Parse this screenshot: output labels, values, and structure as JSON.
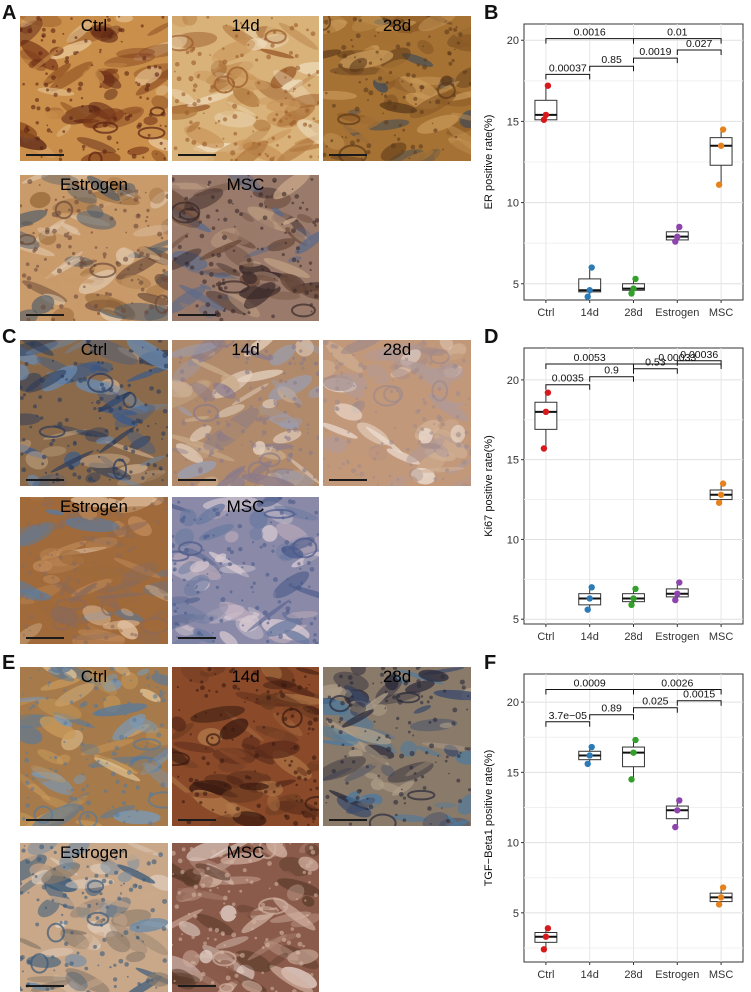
{
  "panel_letters": [
    "A",
    "B",
    "C",
    "D",
    "E",
    "F"
  ],
  "micrographs": [
    {
      "label": "Ctrl",
      "palette": [
        "#8a4a1e",
        "#c98f4b",
        "#5a2212",
        "#e8c89a",
        "#7d3a1a"
      ]
    },
    {
      "label": "14d",
      "palette": [
        "#b27a40",
        "#d9b27a",
        "#9a5a28",
        "#eedcbc",
        "#c9965a"
      ]
    },
    {
      "label": "28d",
      "palette": [
        "#8a5a26",
        "#a67234",
        "#5d3a1a",
        "#c99a5a",
        "#3a4a5a"
      ]
    },
    {
      "label": "Estrogen",
      "palette": [
        "#9a6a3a",
        "#c99a6a",
        "#6a4a3a",
        "#e2cbb0",
        "#4a5a6a"
      ]
    },
    {
      "label": "MSC",
      "palette": [
        "#6a4a3a",
        "#9a7a6a",
        "#3a2a2a",
        "#c9a88a",
        "#5a6a8a"
      ]
    },
    {
      "label": "Ctrl",
      "palette": [
        "#3a5a8a",
        "#8a6a4a",
        "#2a3a5a",
        "#c9aa8a",
        "#6a8ab0"
      ]
    },
    {
      "label": "14d",
      "palette": [
        "#c9aa8a",
        "#b08a6a",
        "#8a7a8a",
        "#e6d3c2",
        "#9aa0b8"
      ]
    },
    {
      "label": "28d",
      "palette": [
        "#d2b196",
        "#c2987a",
        "#a08a8a",
        "#ecdcd0",
        "#b09a9a"
      ]
    },
    {
      "label": "Estrogen",
      "palette": [
        "#c08a5a",
        "#a06a3a",
        "#8a6a5a",
        "#e2c2a2",
        "#5a7aa0"
      ]
    },
    {
      "label": "MSC",
      "palette": [
        "#b8a8b8",
        "#8a8aa8",
        "#4a5a8a",
        "#d8cad2",
        "#6a7aa0"
      ]
    },
    {
      "label": "Ctrl",
      "palette": [
        "#c99a5a",
        "#a67a4a",
        "#5a7a9a",
        "#e6c89a",
        "#7a9ab8"
      ]
    },
    {
      "label": "14d",
      "palette": [
        "#5a2a1a",
        "#8a4a2a",
        "#3a1a10",
        "#b27a4a",
        "#6a3a20"
      ]
    },
    {
      "label": "28d",
      "palette": [
        "#3a4a6a",
        "#8a7a6a",
        "#2a2a3a",
        "#b0a08a",
        "#4a7aa0"
      ]
    },
    {
      "label": "Estrogen",
      "palette": [
        "#8a7a6a",
        "#c9a88a",
        "#3a5a7a",
        "#e2d2c2",
        "#6a8aa8"
      ]
    },
    {
      "label": "MSC",
      "palette": [
        "#b28a7a",
        "#8a5a4a",
        "#d2b2a2",
        "#5a3a2a",
        "#e8d8d0"
      ]
    }
  ],
  "chart_data": [
    {
      "type": "box",
      "ylabel": "ER positive rate(%)",
      "ylim": [
        4,
        21
      ],
      "yticks": [
        5,
        10,
        15,
        20
      ],
      "categories": [
        "Ctrl",
        "14d",
        "28d",
        "Estrogen",
        "MSC"
      ],
      "colors": [
        "#d7191c",
        "#2c7bb6",
        "#33a02c",
        "#8e44ad",
        "#e6821e"
      ],
      "boxes": [
        {
          "min": 15.0,
          "q1": 15.1,
          "median": 15.4,
          "q3": 16.3,
          "max": 17.2
        },
        {
          "min": 4.2,
          "q1": 4.5,
          "median": 4.6,
          "q3": 5.3,
          "max": 6.0
        },
        {
          "min": 4.4,
          "q1": 4.6,
          "median": 4.7,
          "q3": 5.0,
          "max": 5.3
        },
        {
          "min": 7.6,
          "q1": 7.7,
          "median": 7.9,
          "q3": 8.2,
          "max": 8.5
        },
        {
          "min": 11.1,
          "q1": 12.3,
          "median": 13.5,
          "q3": 14.0,
          "max": 14.5
        }
      ],
      "points": [
        [
          15.1,
          15.4,
          17.2
        ],
        [
          4.2,
          4.6,
          6.0
        ],
        [
          4.4,
          4.7,
          5.3
        ],
        [
          7.6,
          7.9,
          8.5
        ],
        [
          11.1,
          13.5,
          14.5
        ]
      ],
      "comparisons": [
        {
          "from": 0,
          "to": 2,
          "label": "0.0016",
          "y": 20.1
        },
        {
          "from": 2,
          "to": 4,
          "label": "0.01",
          "y": 20.1
        },
        {
          "from": 0,
          "to": 1,
          "label": "0.00037",
          "y": 17.9
        },
        {
          "from": 1,
          "to": 2,
          "label": "0.85",
          "y": 18.4
        },
        {
          "from": 2,
          "to": 3,
          "label": "0.0019",
          "y": 18.9
        },
        {
          "from": 3,
          "to": 4,
          "label": "0.027",
          "y": 19.4
        }
      ]
    },
    {
      "type": "box",
      "ylabel": "Ki67 positive rate(%)",
      "ylim": [
        4.7,
        22
      ],
      "yticks": [
        5,
        10,
        15,
        20
      ],
      "categories": [
        "Ctrl",
        "14d",
        "28d",
        "Estrogen",
        "MSC"
      ],
      "colors": [
        "#d7191c",
        "#2c7bb6",
        "#33a02c",
        "#8e44ad",
        "#e6821e"
      ],
      "boxes": [
        {
          "min": 15.7,
          "q1": 16.9,
          "median": 18.0,
          "q3": 18.6,
          "max": 19.2
        },
        {
          "min": 5.6,
          "q1": 5.9,
          "median": 6.3,
          "q3": 6.6,
          "max": 7.0
        },
        {
          "min": 5.9,
          "q1": 6.1,
          "median": 6.3,
          "q3": 6.6,
          "max": 6.9
        },
        {
          "min": 6.2,
          "q1": 6.4,
          "median": 6.6,
          "q3": 6.9,
          "max": 7.3
        },
        {
          "min": 12.3,
          "q1": 12.5,
          "median": 12.8,
          "q3": 13.1,
          "max": 13.5
        }
      ],
      "points": [
        [
          15.7,
          18.0,
          19.2
        ],
        [
          5.6,
          6.3,
          7.0
        ],
        [
          5.9,
          6.3,
          6.9
        ],
        [
          6.2,
          6.6,
          7.3
        ],
        [
          12.3,
          12.8,
          13.5
        ]
      ],
      "comparisons": [
        {
          "from": 0,
          "to": 2,
          "label": "0.0053",
          "y": 21.0
        },
        {
          "from": 2,
          "to": 4,
          "label": "0.00033",
          "y": 21.0
        },
        {
          "from": 0,
          "to": 1,
          "label": "0.0035",
          "y": 19.7
        },
        {
          "from": 1,
          "to": 2,
          "label": "0.9",
          "y": 20.2
        },
        {
          "from": 2,
          "to": 3,
          "label": "0.53",
          "y": 20.7
        },
        {
          "from": 3,
          "to": 4,
          "label": "0.00036",
          "y": 21.2
        }
      ]
    },
    {
      "type": "box",
      "ylabel": "TGF−Beta1 positive rate(%)",
      "ylim": [
        1.5,
        22
      ],
      "yticks": [
        5,
        10,
        15,
        20
      ],
      "categories": [
        "Ctrl",
        "14d",
        "28d",
        "Estrogen",
        "MSC"
      ],
      "colors": [
        "#d7191c",
        "#2c7bb6",
        "#33a02c",
        "#8e44ad",
        "#e6821e"
      ],
      "boxes": [
        {
          "min": 2.4,
          "q1": 2.9,
          "median": 3.3,
          "q3": 3.6,
          "max": 3.9
        },
        {
          "min": 15.6,
          "q1": 15.9,
          "median": 16.2,
          "q3": 16.5,
          "max": 16.8
        },
        {
          "min": 14.5,
          "q1": 15.4,
          "median": 16.4,
          "q3": 16.8,
          "max": 17.3
        },
        {
          "min": 11.1,
          "q1": 11.7,
          "median": 12.3,
          "q3": 12.6,
          "max": 13.0
        },
        {
          "min": 5.6,
          "q1": 5.8,
          "median": 6.1,
          "q3": 6.4,
          "max": 6.8
        }
      ],
      "points": [
        [
          2.4,
          3.3,
          3.9
        ],
        [
          15.6,
          16.2,
          16.8
        ],
        [
          14.5,
          16.4,
          17.3
        ],
        [
          11.1,
          12.3,
          13.0
        ],
        [
          5.6,
          6.1,
          6.8
        ]
      ],
      "comparisons": [
        {
          "from": 0,
          "to": 2,
          "label": "0.0009",
          "y": 20.9
        },
        {
          "from": 2,
          "to": 4,
          "label": "0.0026",
          "y": 20.9
        },
        {
          "from": 0,
          "to": 1,
          "label": "3.7e−05",
          "y": 18.6
        },
        {
          "from": 1,
          "to": 2,
          "label": "0.89",
          "y": 19.1
        },
        {
          "from": 2,
          "to": 3,
          "label": "0.025",
          "y": 19.6
        },
        {
          "from": 3,
          "to": 4,
          "label": "0.0015",
          "y": 20.1
        }
      ]
    }
  ]
}
